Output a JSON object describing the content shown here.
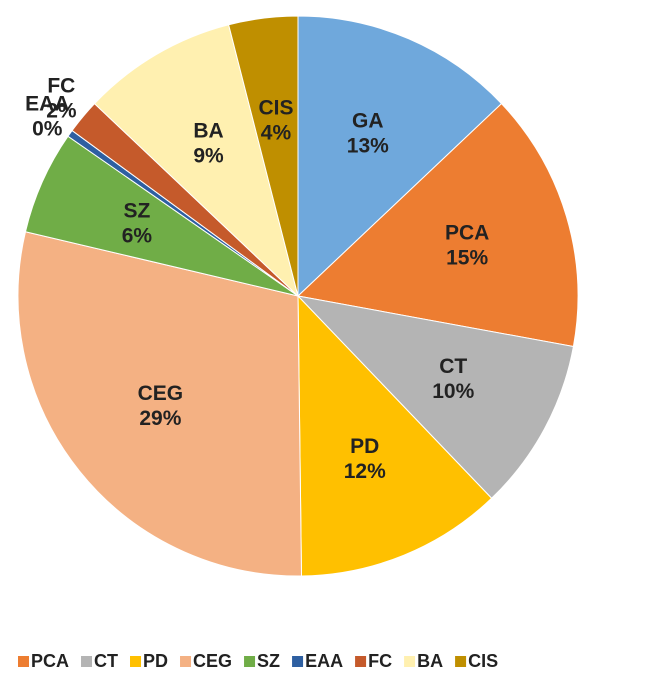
{
  "chart_data": {
    "type": "pie",
    "categories": [
      "GA",
      "PCA",
      "CT",
      "PD",
      "CEG",
      "SZ",
      "EAA",
      "FC",
      "BA",
      "CIS"
    ],
    "values": [
      13,
      15,
      10,
      12,
      29,
      6,
      0.4,
      2,
      9,
      4
    ],
    "value_labels": [
      "13%",
      "15%",
      "10%",
      "12%",
      "29%",
      "6%",
      "0%",
      "2%",
      "9%",
      "4%"
    ],
    "colors": [
      "#6fa8dc",
      "#ed7d31",
      "#b4b4b4",
      "#ffc000",
      "#f4b183",
      "#70ad47",
      "#2e5fa1",
      "#c55a2b",
      "#fff0b0",
      "#bf8f00"
    ],
    "legend": "bottom"
  }
}
